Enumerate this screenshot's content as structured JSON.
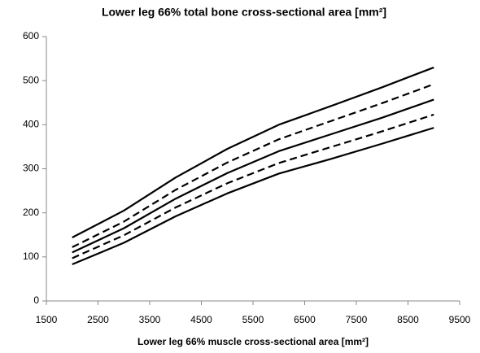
{
  "chart_data": {
    "type": "line",
    "title": "Lower leg 66% total bone cross-sectional area [mm²]",
    "x_label": "Lower leg 66% muscle cross-sectional area [mm²]",
    "x": [
      2000,
      3000,
      4000,
      5000,
      6000,
      7000,
      8000,
      9000
    ],
    "series": [
      {
        "color": "#000000",
        "dashed": false,
        "values": [
          144,
          205,
          280,
          345,
          400,
          442,
          485,
          530
        ]
      },
      {
        "color": "#000000",
        "dashed": true,
        "values": [
          122,
          180,
          252,
          314,
          367,
          408,
          449,
          492
        ]
      },
      {
        "color": "#000000",
        "dashed": false,
        "values": [
          110,
          165,
          232,
          290,
          340,
          378,
          416,
          457
        ]
      },
      {
        "color": "#000000",
        "dashed": true,
        "values": [
          97,
          149,
          212,
          267,
          313,
          349,
          385,
          423
        ]
      },
      {
        "color": "#000000",
        "dashed": false,
        "values": [
          83,
          132,
          192,
          244,
          289,
          322,
          357,
          393
        ]
      }
    ],
    "xlim": [
      1500,
      9500
    ],
    "xticks": [
      1500,
      2500,
      3500,
      4500,
      5500,
      6500,
      7500,
      8500,
      9500
    ],
    "ylim": [
      0,
      600
    ],
    "yticks": [
      0,
      100,
      200,
      300,
      400,
      500,
      600
    ],
    "grid": false
  }
}
